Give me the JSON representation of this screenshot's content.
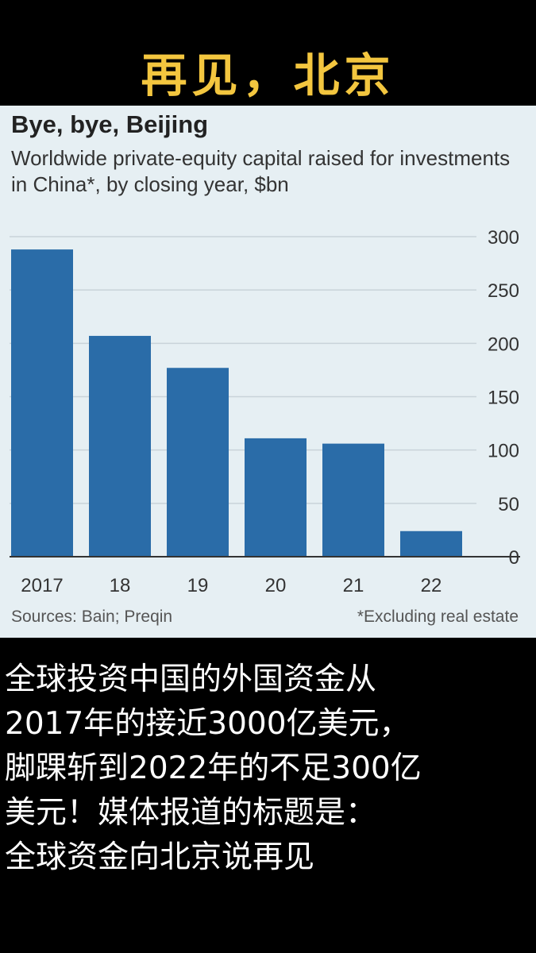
{
  "overlay_title": "再见，北京",
  "caption": "全球投资中国的外国资金从\n2017年的接近3000亿美元，\n脚踝斩到2022年的不足300亿\n美元！媒体报道的标题是：\n全球资金向北京说再见",
  "colors": {
    "bar": "#2a6ca8",
    "panel": "#e6eff3",
    "overlay_title": "#f3c63f"
  },
  "chart_data": {
    "type": "bar",
    "title": "Bye, bye, Beijing",
    "subtitle": "Worldwide private-equity capital raised for investments in China*, by closing year, $bn",
    "categories": [
      "2017",
      "18",
      "19",
      "20",
      "21",
      "22"
    ],
    "values": [
      288,
      207,
      177,
      111,
      106,
      24
    ],
    "ylim": [
      0,
      300
    ],
    "yticks": [
      0,
      50,
      100,
      150,
      200,
      250,
      300
    ],
    "y_axis_position": "right",
    "grid": true,
    "source": "Sources: Bain; Preqin",
    "note": "*Excluding real estate"
  }
}
